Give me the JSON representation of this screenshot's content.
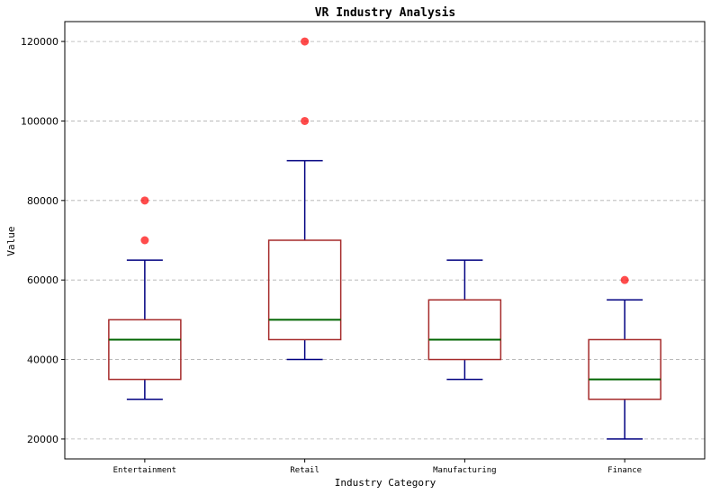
{
  "chart_data": {
    "type": "box",
    "title": "VR Industry Analysis",
    "xlabel": "Industry Category",
    "ylabel": "Value",
    "ylim": [
      15000,
      125000
    ],
    "yticks": [
      20000,
      40000,
      60000,
      80000,
      100000,
      120000
    ],
    "yticklabels": [
      "20000",
      "40000",
      "60000",
      "80000",
      "100000",
      "120000"
    ],
    "grid": "y-dashed",
    "colors": {
      "box": "#a52a2a",
      "median": "#006400",
      "whisker": "#000080",
      "outlier": "#ff0000",
      "grid": "#b0b0b0"
    },
    "categories": [
      "Entertainment",
      "Retail",
      "Manufacturing",
      "Finance"
    ],
    "boxes": [
      {
        "category": "Entertainment",
        "whisker_low": 30000,
        "q1": 35000,
        "median": 45000,
        "q3": 50000,
        "whisker_high": 65000,
        "outliers": [
          70000,
          80000
        ]
      },
      {
        "category": "Retail",
        "whisker_low": 40000,
        "q1": 45000,
        "median": 50000,
        "q3": 70000,
        "whisker_high": 90000,
        "outliers": [
          100000,
          120000
        ]
      },
      {
        "category": "Manufacturing",
        "whisker_low": 35000,
        "q1": 40000,
        "median": 45000,
        "q3": 55000,
        "whisker_high": 65000,
        "outliers": []
      },
      {
        "category": "Finance",
        "whisker_low": 20000,
        "q1": 30000,
        "median": 35000,
        "q3": 45000,
        "whisker_high": 55000,
        "outliers": [
          60000
        ]
      }
    ]
  }
}
